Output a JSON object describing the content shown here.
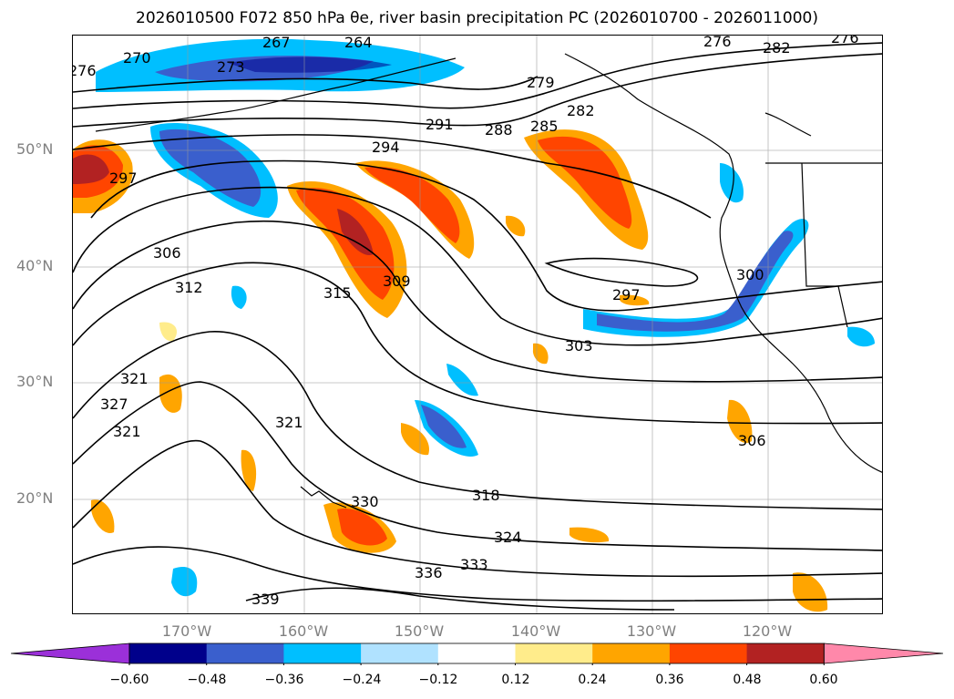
{
  "title": "2026010500 F072 850 hPa θe, river basin precipitation PC (2026010700 - 2026011000)",
  "map": {
    "lat_ticks": [
      "50°N",
      "40°N",
      "30°N",
      "20°N"
    ],
    "lon_ticks": [
      "170°W",
      "160°W",
      "150°W",
      "140°W",
      "130°W",
      "120°W"
    ],
    "contour_labels": [
      "276",
      "270",
      "273",
      "267",
      "264",
      "279",
      "276",
      "282",
      "276",
      "291",
      "288",
      "285",
      "282",
      "294",
      "297",
      "306",
      "312",
      "315",
      "309",
      "300",
      "297",
      "303",
      "321",
      "327",
      "321",
      "321",
      "306",
      "318",
      "324",
      "333",
      "336",
      "339",
      "330"
    ]
  },
  "colorbar": {
    "tick_labels": [
      "−0.60",
      "−0.48",
      "−0.36",
      "−0.24",
      "−0.12",
      "0.12",
      "0.24",
      "0.36",
      "0.48",
      "0.60"
    ],
    "colors": [
      "#9b30d9",
      "#00008b",
      "#3a5fcd",
      "#00bfff",
      "#b0e2ff",
      "#ffffff",
      "#ffec8b",
      "#ffa500",
      "#ff4500",
      "#b22222",
      "#ff88aa"
    ]
  }
}
